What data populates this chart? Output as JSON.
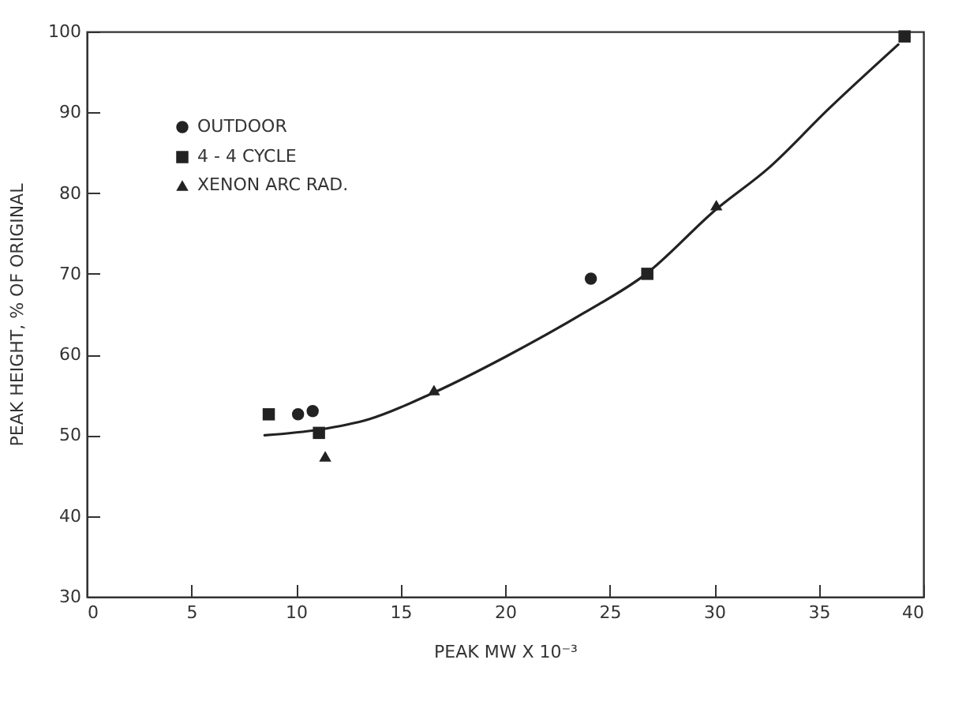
{
  "chart_data": {
    "type": "scatter",
    "xlabel": "PEAK MW X 10⁻³",
    "ylabel": "PEAK HEIGHT, % OF ORIGINAL",
    "xlim": [
      0,
      40
    ],
    "xticks": [
      0,
      5,
      10,
      15,
      20,
      25,
      30,
      35,
      40
    ],
    "ylim": [
      30,
      100
    ],
    "yticks": [
      30,
      40,
      50,
      60,
      70,
      80,
      90,
      100
    ],
    "grid": false,
    "legend": "top left",
    "series": [
      {
        "type": "line",
        "marker": "none",
        "color": "#222222",
        "x": [
          8.5,
          11.1,
          13.5,
          16.6,
          20.0,
          23.8,
          26.7,
          30.1,
          32.6,
          35.5,
          38.8
        ],
        "values": [
          50.0,
          50.7,
          52.0,
          55.3,
          59.7,
          65.2,
          69.9,
          78.0,
          83.1,
          90.5,
          98.4
        ]
      },
      {
        "name": "OUTDOOR",
        "marker": "circle",
        "color": "#222222",
        "x": [
          10.1,
          10.8,
          24.1
        ],
        "values": [
          52.6,
          53.0,
          69.4
        ]
      },
      {
        "name": "4 - 4 CYCLE",
        "marker": "square",
        "color": "#222222",
        "x": [
          8.7,
          11.1,
          26.8,
          39.1
        ],
        "values": [
          52.6,
          50.3,
          70.0,
          99.4
        ]
      },
      {
        "name": "XENON ARC RAD.",
        "marker": "triangle",
        "color": "#222222",
        "x": [
          11.4,
          16.6,
          30.1
        ],
        "values": [
          47.4,
          55.6,
          78.5
        ]
      }
    ]
  }
}
